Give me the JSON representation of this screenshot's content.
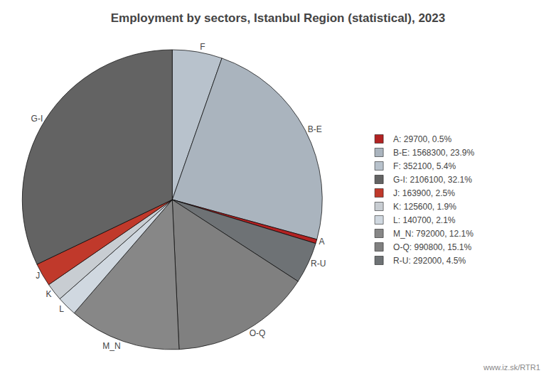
{
  "chart_data": {
    "type": "pie",
    "title": "Employment by sectors, Istanbul Region (statistical), 2023",
    "categories": [
      "F",
      "B-E",
      "A",
      "R-U",
      "O-Q",
      "M_N",
      "L",
      "K",
      "J",
      "G-I"
    ],
    "values": [
      352100,
      1568300,
      29700,
      292000,
      990800,
      792000,
      140700,
      125600,
      163900,
      2106100
    ],
    "colors": [
      "#b8c2cc",
      "#aab4be",
      "#b22222",
      "#6e7275",
      "#808080",
      "#878787",
      "#d0d8e0",
      "#c8cdd2",
      "#c0392b",
      "#636363"
    ],
    "legend": "right",
    "legend_entries": [
      {
        "label": "A: 29700, 0.5%",
        "color": "#b22222"
      },
      {
        "label": "B-E: 1568300, 23.9%",
        "color": "#aab4be"
      },
      {
        "label": "F: 352100, 5.4%",
        "color": "#b8c2cc"
      },
      {
        "label": "G-I: 2106100, 32.1%",
        "color": "#636363"
      },
      {
        "label": "J: 163900, 2.5%",
        "color": "#c0392b"
      },
      {
        "label": "K: 125600, 1.9%",
        "color": "#c8cdd2"
      },
      {
        "label": "L: 140700, 2.1%",
        "color": "#d0d8e0"
      },
      {
        "label": "M_N: 792000, 12.1%",
        "color": "#878787"
      },
      {
        "label": "O-Q: 990800, 15.1%",
        "color": "#808080"
      },
      {
        "label": "R-U: 292000, 4.5%",
        "color": "#6e7275"
      }
    ],
    "annotations": [
      "www.iz.sk/RTR1"
    ]
  }
}
